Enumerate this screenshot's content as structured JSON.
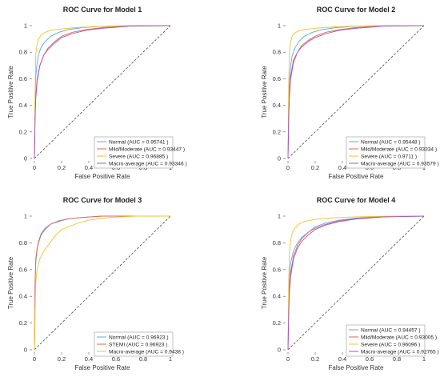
{
  "chart_data": [
    {
      "type": "line",
      "title": "ROC Curve for Model 1",
      "xlabel": "False Positive Rate",
      "ylabel": "True Positive Rate",
      "xlim": [
        0,
        1
      ],
      "ylim": [
        0,
        1
      ],
      "xticks": [
        "0",
        "0.2",
        "0.4",
        "0.6",
        "0.8",
        "1"
      ],
      "yticks": [
        "0",
        "0.2",
        "0.4",
        "0.6",
        "0.8",
        "1"
      ],
      "grid": false,
      "legend_position": "bottom-right",
      "series": [
        {
          "name": "Normal (AUC = 0.95741 )",
          "color": "#5aa9e6",
          "x": [
            0,
            0.005,
            0.01,
            0.02,
            0.03,
            0.05,
            0.08,
            0.12,
            0.18,
            0.25,
            0.35,
            0.5,
            0.7,
            1
          ],
          "y": [
            0,
            0.45,
            0.62,
            0.72,
            0.78,
            0.84,
            0.88,
            0.92,
            0.95,
            0.97,
            0.985,
            0.995,
            1,
            1
          ]
        },
        {
          "name": "Mild/Moderate (AUC = 0.93447 )",
          "color": "#e8634a",
          "x": [
            0,
            0.005,
            0.01,
            0.02,
            0.04,
            0.07,
            0.1,
            0.15,
            0.2,
            0.28,
            0.38,
            0.5,
            0.7,
            1
          ],
          "y": [
            0,
            0.35,
            0.48,
            0.6,
            0.7,
            0.78,
            0.83,
            0.88,
            0.92,
            0.95,
            0.97,
            0.985,
            0.998,
            1
          ]
        },
        {
          "name": "Severe (AUC = 0.96885 )",
          "color": "#f2c12e",
          "x": [
            0,
            0.005,
            0.01,
            0.02,
            0.03,
            0.05,
            0.08,
            0.12,
            0.2,
            0.3,
            0.45,
            0.65,
            1
          ],
          "y": [
            0,
            0.5,
            0.78,
            0.86,
            0.9,
            0.93,
            0.95,
            0.965,
            0.975,
            0.985,
            0.993,
            0.998,
            1
          ]
        },
        {
          "name": "Macro-average (AUC = 0.93346 )",
          "color": "#9b59c9",
          "x": [
            0,
            0.005,
            0.01,
            0.02,
            0.04,
            0.07,
            0.1,
            0.15,
            0.2,
            0.28,
            0.38,
            0.5,
            0.7,
            1
          ],
          "y": [
            0,
            0.3,
            0.45,
            0.58,
            0.7,
            0.78,
            0.82,
            0.87,
            0.91,
            0.94,
            0.965,
            0.98,
            0.995,
            1
          ]
        }
      ]
    },
    {
      "type": "line",
      "title": "ROC Curve for Model 2",
      "xlabel": "False Positive Rate",
      "ylabel": "True Positive Rate",
      "xlim": [
        0,
        1
      ],
      "ylim": [
        0,
        1
      ],
      "xticks": [
        "0",
        "0.2",
        "0.4",
        "0.6",
        "0.8",
        "1"
      ],
      "yticks": [
        "0",
        "0.2",
        "0.4",
        "0.6",
        "0.8",
        "1"
      ],
      "grid": false,
      "legend_position": "bottom-right",
      "series": [
        {
          "name": "Normal (AUC = 0.95448 )",
          "color": "#5aa9e6",
          "x": [
            0,
            0.005,
            0.01,
            0.02,
            0.03,
            0.05,
            0.08,
            0.12,
            0.18,
            0.25,
            0.35,
            0.5,
            0.7,
            1
          ],
          "y": [
            0,
            0.4,
            0.58,
            0.7,
            0.77,
            0.83,
            0.88,
            0.92,
            0.95,
            0.97,
            0.985,
            0.995,
            1,
            1
          ]
        },
        {
          "name": "Mild/Moderate (AUC = 0.93334 )",
          "color": "#e8634a",
          "x": [
            0,
            0.005,
            0.01,
            0.02,
            0.04,
            0.07,
            0.1,
            0.15,
            0.2,
            0.28,
            0.38,
            0.5,
            0.7,
            1
          ],
          "y": [
            0,
            0.3,
            0.46,
            0.6,
            0.72,
            0.8,
            0.85,
            0.89,
            0.92,
            0.95,
            0.97,
            0.985,
            0.998,
            1
          ]
        },
        {
          "name": "Severe (AUC = 0.9711 )",
          "color": "#f2c12e",
          "x": [
            0,
            0.005,
            0.01,
            0.02,
            0.03,
            0.05,
            0.08,
            0.12,
            0.2,
            0.3,
            0.45,
            0.65,
            1
          ],
          "y": [
            0,
            0.55,
            0.8,
            0.88,
            0.92,
            0.945,
            0.96,
            0.97,
            0.98,
            0.988,
            0.995,
            0.999,
            1
          ]
        },
        {
          "name": "Macro-average (AUC = 0.93579 )",
          "color": "#9b59c9",
          "x": [
            0,
            0.005,
            0.01,
            0.02,
            0.04,
            0.07,
            0.1,
            0.15,
            0.2,
            0.28,
            0.38,
            0.5,
            0.7,
            1
          ],
          "y": [
            0,
            0.32,
            0.48,
            0.62,
            0.74,
            0.8,
            0.84,
            0.88,
            0.91,
            0.94,
            0.965,
            0.98,
            0.995,
            1
          ]
        }
      ]
    },
    {
      "type": "line",
      "title": "ROC Curve for Model 3",
      "xlabel": "False Positive Rate",
      "ylabel": "True Positive Rate",
      "xlim": [
        0,
        1
      ],
      "ylim": [
        0,
        1
      ],
      "xticks": [
        "0",
        "0.2",
        "0.4",
        "0.6",
        "0.8",
        "1"
      ],
      "yticks": [
        "0",
        "0.2",
        "0.4",
        "0.6",
        "0.8",
        "1"
      ],
      "grid": false,
      "legend_position": "bottom-right",
      "series": [
        {
          "name": "Normal (AUC = 0.96923 )",
          "color": "#5aa9e6",
          "x": [
            0,
            0.005,
            0.01,
            0.02,
            0.03,
            0.05,
            0.08,
            0.12,
            0.18,
            0.25,
            0.35,
            0.5,
            1
          ],
          "y": [
            0,
            0.5,
            0.65,
            0.75,
            0.8,
            0.86,
            0.9,
            0.94,
            0.96,
            0.98,
            0.99,
            1,
            1
          ]
        },
        {
          "name": "STEMI (AUC = 0.96923 )",
          "color": "#e8634a",
          "x": [
            0,
            0.005,
            0.01,
            0.02,
            0.03,
            0.05,
            0.08,
            0.12,
            0.18,
            0.25,
            0.35,
            0.5,
            1
          ],
          "y": [
            0,
            0.52,
            0.68,
            0.76,
            0.81,
            0.87,
            0.91,
            0.94,
            0.965,
            0.98,
            0.99,
            1,
            1
          ]
        },
        {
          "name": "Macro-average (AUC = 0.9438 )",
          "color": "#f2c12e",
          "x": [
            0,
            0.005,
            0.01,
            0.02,
            0.04,
            0.07,
            0.1,
            0.15,
            0.2,
            0.3,
            0.4,
            0.55,
            0.75,
            1
          ],
          "y": [
            0,
            0.3,
            0.5,
            0.6,
            0.68,
            0.74,
            0.78,
            0.85,
            0.9,
            0.94,
            0.97,
            0.99,
            1,
            1
          ]
        }
      ]
    },
    {
      "type": "line",
      "title": "ROC Curve for Model 4",
      "xlabel": "False Positive Rate",
      "ylabel": "True Positive Rate",
      "xlim": [
        0,
        1
      ],
      "ylim": [
        0,
        1
      ],
      "xticks": [
        "0",
        "0.2",
        "0.4",
        "0.6",
        "0.8",
        "1"
      ],
      "yticks": [
        "0",
        "0.2",
        "0.4",
        "0.6",
        "0.8",
        "1"
      ],
      "grid": false,
      "legend_position": "bottom-right",
      "series": [
        {
          "name": "Normal (AUC = 0.94457 )",
          "color": "#5aa9e6",
          "x": [
            0,
            0.005,
            0.01,
            0.02,
            0.04,
            0.07,
            0.1,
            0.15,
            0.2,
            0.28,
            0.38,
            0.5,
            0.7,
            1
          ],
          "y": [
            0,
            0.35,
            0.55,
            0.65,
            0.74,
            0.8,
            0.84,
            0.88,
            0.92,
            0.95,
            0.97,
            0.985,
            0.998,
            1
          ]
        },
        {
          "name": "Mild/Moderate (AUC = 0.93005 )",
          "color": "#e8634a",
          "x": [
            0,
            0.005,
            0.01,
            0.02,
            0.04,
            0.07,
            0.1,
            0.15,
            0.2,
            0.28,
            0.38,
            0.5,
            0.7,
            1
          ],
          "y": [
            0,
            0.3,
            0.45,
            0.58,
            0.7,
            0.78,
            0.83,
            0.88,
            0.91,
            0.94,
            0.965,
            0.98,
            0.995,
            1
          ]
        },
        {
          "name": "Severe (AUC = 0.96096 )",
          "color": "#f2c12e",
          "x": [
            0,
            0.005,
            0.01,
            0.02,
            0.03,
            0.05,
            0.08,
            0.12,
            0.2,
            0.3,
            0.45,
            0.65,
            1
          ],
          "y": [
            0,
            0.5,
            0.72,
            0.82,
            0.87,
            0.91,
            0.94,
            0.96,
            0.975,
            0.985,
            0.993,
            0.998,
            1
          ]
        },
        {
          "name": "Macro-average (AUC = 0.92765 )",
          "color": "#9b59c9",
          "x": [
            0,
            0.005,
            0.01,
            0.02,
            0.04,
            0.07,
            0.1,
            0.15,
            0.2,
            0.28,
            0.38,
            0.5,
            0.7,
            1
          ],
          "y": [
            0,
            0.28,
            0.42,
            0.55,
            0.68,
            0.76,
            0.81,
            0.86,
            0.9,
            0.935,
            0.96,
            0.978,
            0.994,
            1
          ]
        }
      ]
    }
  ]
}
